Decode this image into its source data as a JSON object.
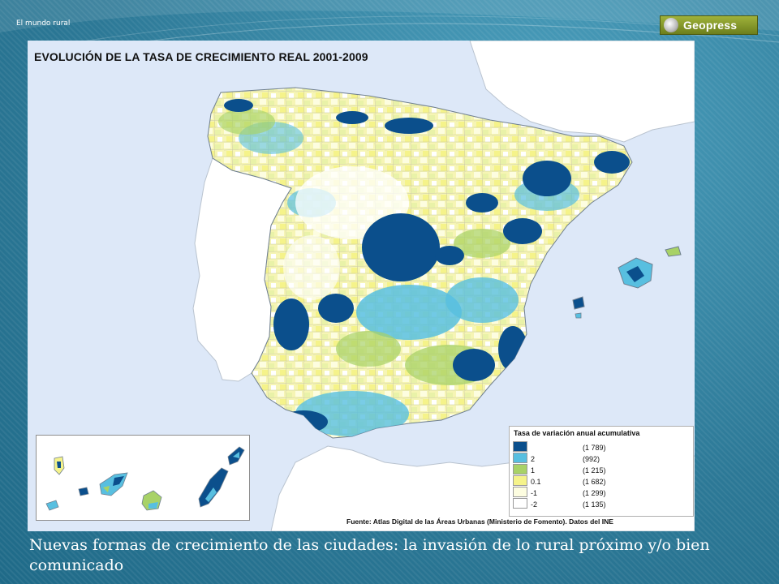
{
  "slide": {
    "header_label": "El mundo rural",
    "logo_text": "Geopress",
    "caption": "Nuevas formas de crecimiento de las ciudades: la invasión de lo rural próximo y/o bien comunicado"
  },
  "map": {
    "title": "EVOLUCIÓN DE LA TASA DE CRECIMIENTO REAL 2001-2009",
    "source": "Fuente: Atlas Digital de las Áreas Urbanas (Ministerio de Fomento). Datos del INE",
    "colors": {
      "sea": "#dde8f8",
      "land_outside": "#ffffff",
      "class_2": "#0b4f8c",
      "class_1": "#58bfe0",
      "class_0_1": "#a8d267",
      "class_minus_1": "#f5f38a",
      "class_minus_2": "#fdfde0",
      "class_white": "#ffffff"
    },
    "legend": {
      "title": "Tasa de variación anual acumulativa",
      "items": [
        {
          "label": "",
          "count": "(1 789)",
          "color": "#0b4f8c"
        },
        {
          "label": "2",
          "count": "(992)",
          "color": "#58bfe0"
        },
        {
          "label": "1",
          "count": "(1 215)",
          "color": "#a8d267"
        },
        {
          "label": "0.1",
          "count": "(1 682)",
          "color": "#f5f38a"
        },
        {
          "label": "-1",
          "count": "(1 299)",
          "color": "#fdfde0"
        },
        {
          "label": "-2",
          "count": "(1 135)",
          "color": "#ffffff"
        }
      ]
    }
  }
}
